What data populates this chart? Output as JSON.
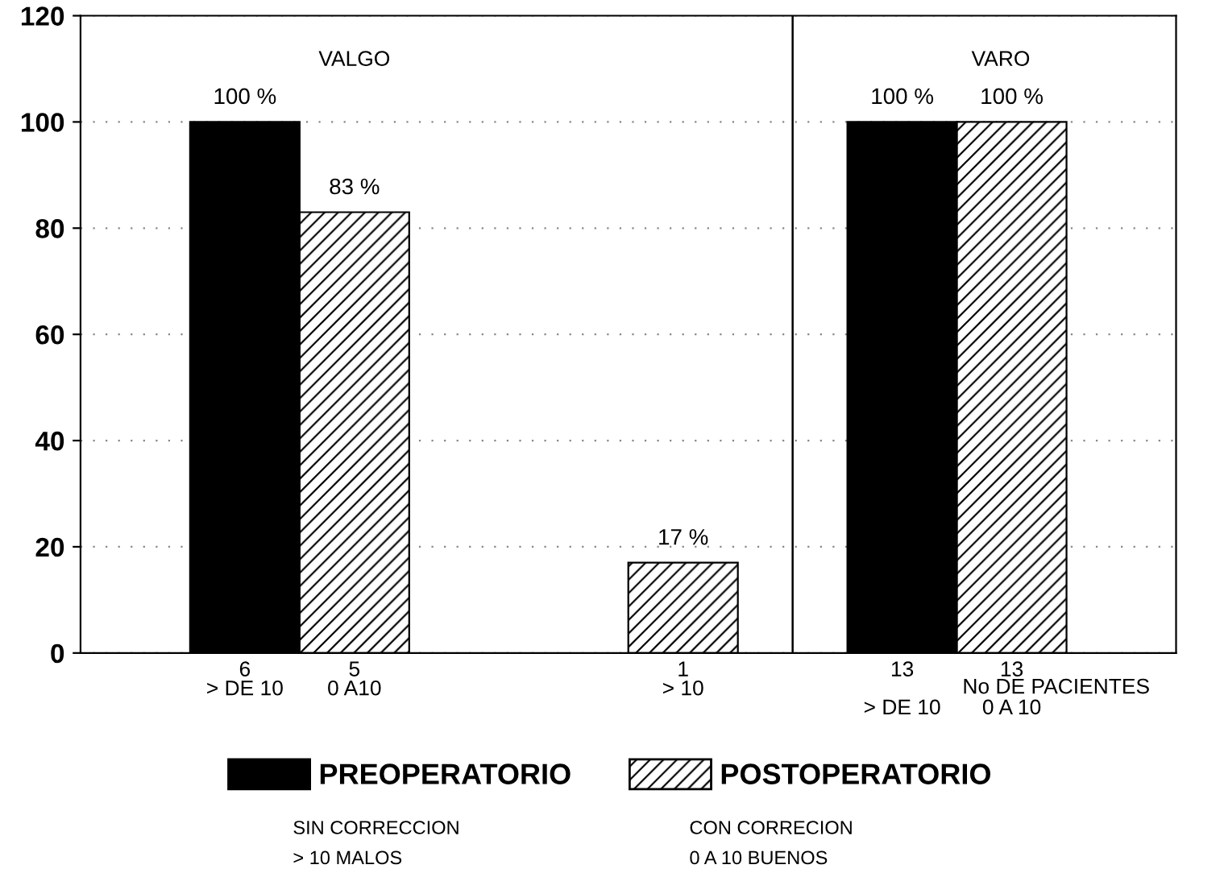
{
  "chart_data": {
    "type": "bar",
    "categories": [
      null,
      "6\n> DE 10",
      "5\n0 A10",
      null,
      null,
      "1\n> 10",
      null,
      "13\n\n> DE 10",
      "13\n\n0 A 10",
      null
    ],
    "series": [
      {
        "name": "PREOPERATORIO",
        "color": "#000000",
        "values": [
          null,
          100,
          null,
          null,
          null,
          null,
          null,
          100,
          null,
          null
        ],
        "value_labels": [
          null,
          "100 %",
          null,
          null,
          null,
          null,
          null,
          "100 %",
          null,
          null
        ]
      },
      {
        "name": "POSTOPERATORIO",
        "color": "#000000",
        "values": [
          null,
          null,
          83,
          null,
          null,
          17,
          null,
          null,
          100,
          null
        ],
        "value_labels": [
          null,
          null,
          "83 %",
          null,
          null,
          "17 %",
          null,
          null,
          "100 %",
          null
        ]
      }
    ],
    "ylim": [
      0,
      120
    ],
    "yticks": [
      0,
      20,
      40,
      60,
      80,
      100,
      120
    ],
    "grid": "y",
    "legend": "bottom",
    "annotations": [
      "VALGO",
      "VARO",
      "No DE PACIENTES",
      "SIN CORRECCION\n> 10 MALOS",
      "CON CORRECION\n0 A 10 BUENOS"
    ]
  }
}
